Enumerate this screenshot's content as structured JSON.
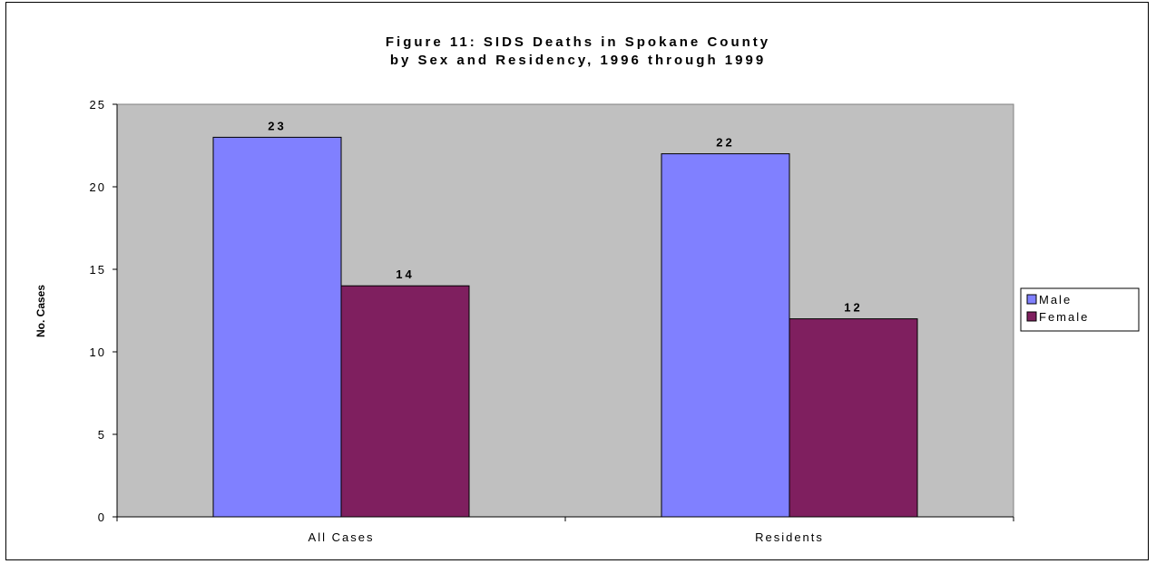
{
  "chart_data": {
    "type": "bar",
    "title": "Figure 11: SIDS Deaths in Spokane County",
    "subtitle": "by Sex and Residency, 1996 through 1999",
    "xlabel": "",
    "ylabel": "No. Cases",
    "ylim": [
      0,
      25
    ],
    "yticks": [
      0,
      5,
      10,
      15,
      20,
      25
    ],
    "categories": [
      "All Cases",
      "Residents"
    ],
    "series": [
      {
        "name": "Male",
        "values": [
          23,
          22
        ],
        "color": "#8080ff"
      },
      {
        "name": "Female",
        "values": [
          14,
          12
        ],
        "color": "#7f1f5f"
      }
    ],
    "data_labels": true,
    "grid": false,
    "plot_background": "#c0c0c0",
    "legend_position": "right"
  }
}
